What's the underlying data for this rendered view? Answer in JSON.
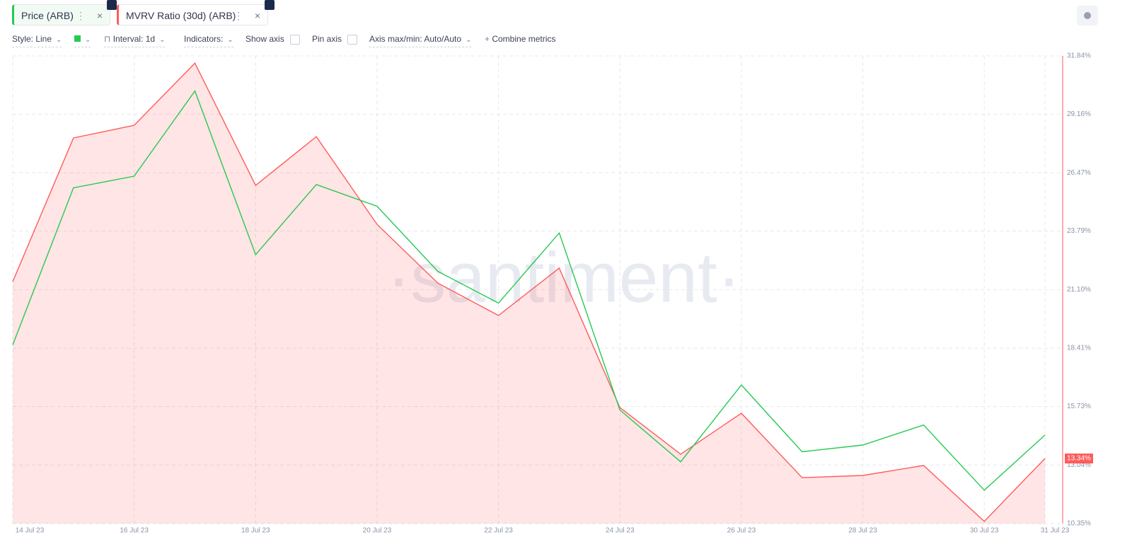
{
  "toolbar": {
    "style": "Style: Line",
    "interval": "Interval: 1d",
    "indicators": "Indicators:",
    "show_axis": "Show axis",
    "pin_axis": "Pin axis",
    "axis_maxmin": "Axis max/min: Auto/Auto",
    "combine": "Combine metrics"
  },
  "watermark": "·santiment·",
  "chart_data": {
    "type": "line",
    "categories": [
      "14 Jul 23",
      null,
      "16 Jul 23",
      null,
      "18 Jul 23",
      null,
      "20 Jul 23",
      null,
      "22 Jul 23",
      null,
      "24 Jul 23",
      null,
      "26 Jul 23",
      null,
      "28 Jul 23",
      null,
      "30 Jul 23",
      "31 Jul 23"
    ],
    "series": [
      {
        "name": "Price (ARB)",
        "color": "#26c953",
        "axis": "y2",
        "values": [
          1.207,
          1.301,
          1.308,
          1.359,
          1.261,
          1.303,
          1.29,
          1.251,
          1.232,
          1.274,
          1.168,
          1.137,
          1.183,
          1.143,
          1.147,
          1.159,
          1.12,
          1.153
        ]
      },
      {
        "name": "MVRV Ratio (30d) (ARB)",
        "color": "#ff5b5b",
        "area": true,
        "values": [
          21.47,
          28.07,
          28.65,
          31.51,
          25.89,
          28.13,
          24.1,
          21.4,
          19.91,
          22.09,
          15.68,
          13.54,
          15.42,
          12.46,
          12.56,
          13.02,
          10.45,
          13.34
        ],
        "value_labels": [
          null,
          null,
          null,
          null,
          null,
          null,
          null,
          null,
          null,
          null,
          null,
          null,
          null,
          null,
          null,
          null,
          null,
          "13.34%"
        ]
      }
    ],
    "ylim": [
      10.35,
      31.84
    ],
    "yticks": [
      {
        "value": 10.35,
        "label": "10.35%"
      },
      {
        "value": 13.04,
        "label": "13.04%"
      },
      {
        "value": 15.73,
        "label": "15.73%"
      },
      {
        "value": 18.41,
        "label": "18.41%"
      },
      {
        "value": 21.1,
        "label": "21.10%"
      },
      {
        "value": 23.79,
        "label": "23.79%"
      },
      {
        "value": 26.47,
        "label": "26.47%"
      },
      {
        "value": 29.16,
        "label": "29.16%"
      },
      {
        "value": 31.84,
        "label": "31.84%"
      }
    ],
    "y2lim": [
      1.1,
      1.38
    ],
    "grid": true
  }
}
